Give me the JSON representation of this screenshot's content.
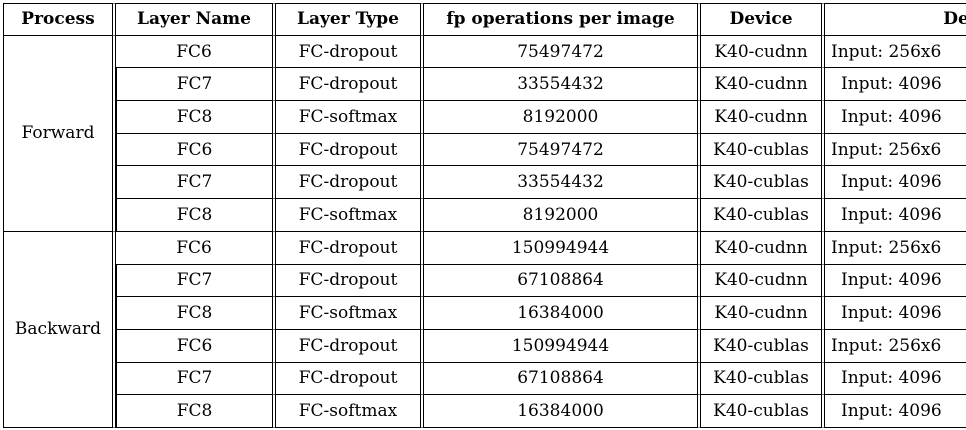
{
  "table": {
    "headers": [
      "Process",
      "Layer Name",
      "Layer Type",
      "fp operations per image",
      "Device",
      "Desc"
    ],
    "groups": [
      {
        "process": "Forward",
        "rows": [
          {
            "layer_name": "FC6",
            "layer_type": "FC-dropout",
            "fp_ops": "75497472",
            "device": "K40-cudnn",
            "desc": "Input: 256x6"
          },
          {
            "layer_name": "FC7",
            "layer_type": "FC-dropout",
            "fp_ops": "33554432",
            "device": "K40-cudnn",
            "desc": "Input: 4096"
          },
          {
            "layer_name": "FC8",
            "layer_type": "FC-softmax",
            "fp_ops": "8192000",
            "device": "K40-cudnn",
            "desc": "Input: 4096"
          },
          {
            "layer_name": "FC6",
            "layer_type": "FC-dropout",
            "fp_ops": "75497472",
            "device": "K40-cublas",
            "desc": "Input: 256x6"
          },
          {
            "layer_name": "FC7",
            "layer_type": "FC-dropout",
            "fp_ops": "33554432",
            "device": "K40-cublas",
            "desc": "Input: 4096"
          },
          {
            "layer_name": "FC8",
            "layer_type": "FC-softmax",
            "fp_ops": "8192000",
            "device": "K40-cublas",
            "desc": "Input: 4096"
          }
        ]
      },
      {
        "process": "Backward",
        "rows": [
          {
            "layer_name": "FC6",
            "layer_type": "FC-dropout",
            "fp_ops": "150994944",
            "device": "K40-cudnn",
            "desc": "Input: 256x6"
          },
          {
            "layer_name": "FC7",
            "layer_type": "FC-dropout",
            "fp_ops": "67108864",
            "device": "K40-cudnn",
            "desc": "Input: 4096"
          },
          {
            "layer_name": "FC8",
            "layer_type": "FC-softmax",
            "fp_ops": "16384000",
            "device": "K40-cudnn",
            "desc": "Input: 4096"
          },
          {
            "layer_name": "FC6",
            "layer_type": "FC-dropout",
            "fp_ops": "150994944",
            "device": "K40-cublas",
            "desc": "Input: 256x6"
          },
          {
            "layer_name": "FC7",
            "layer_type": "FC-dropout",
            "fp_ops": "67108864",
            "device": "K40-cublas",
            "desc": "Input: 4096"
          },
          {
            "layer_name": "FC8",
            "layer_type": "FC-softmax",
            "fp_ops": "16384000",
            "device": "K40-cublas",
            "desc": "Input: 4096"
          }
        ]
      }
    ]
  }
}
